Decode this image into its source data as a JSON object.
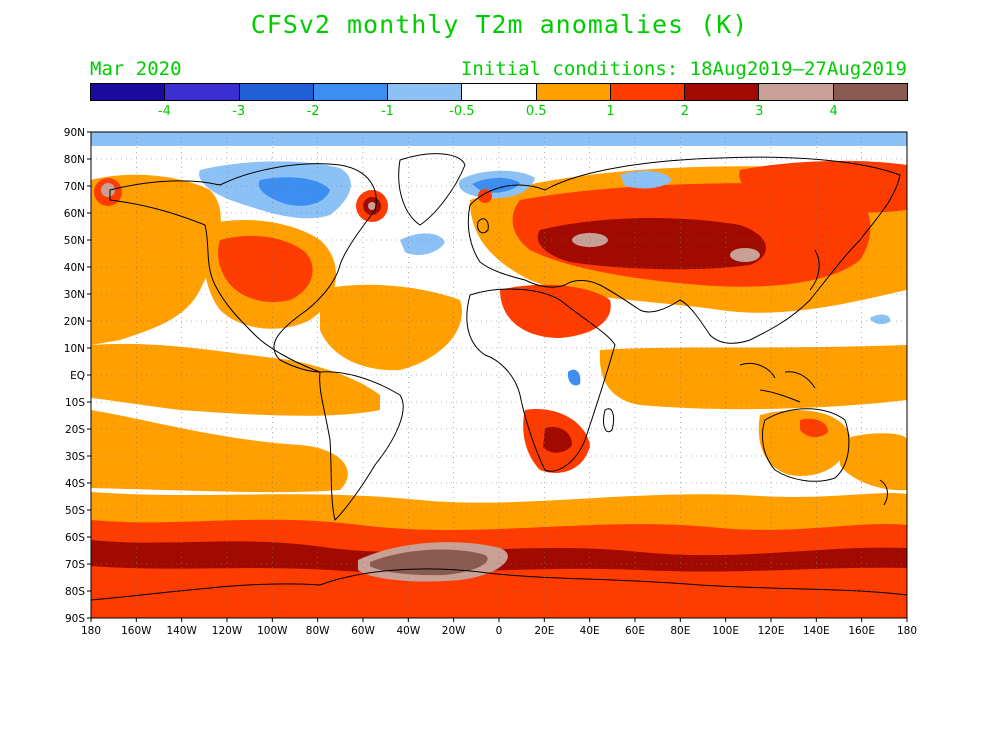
{
  "title": "CFSv2 monthly T2m anomalies (K)",
  "subtitle_left": "Mar 2020",
  "subtitle_right": "Initial conditions: 18Aug2019—27Aug2019",
  "colorbar": {
    "colors": [
      "#1a0a9e",
      "#3c2fd0",
      "#1f5fd6",
      "#3c8ef0",
      "#8cc1f5",
      "#ffffff",
      "#ffa000",
      "#ff3c00",
      "#a00a00",
      "#c8a096",
      "#8a5a50"
    ],
    "labels": [
      "-4",
      "-3",
      "-2",
      "-1",
      "-0.5",
      "0.5",
      "1",
      "2",
      "3",
      "4"
    ]
  },
  "axes": {
    "lat_labels": [
      "90N",
      "80N",
      "70N",
      "60N",
      "50N",
      "40N",
      "30N",
      "20N",
      "10N",
      "EQ",
      "10S",
      "20S",
      "30S",
      "40S",
      "50S",
      "60S",
      "70S",
      "80S",
      "90S"
    ],
    "lon_labels": [
      "180",
      "160W",
      "140W",
      "120W",
      "100W",
      "80W",
      "60W",
      "40W",
      "20W",
      "0",
      "20E",
      "40E",
      "60E",
      "80E",
      "100E",
      "120E",
      "140E",
      "160E",
      "180"
    ]
  }
}
